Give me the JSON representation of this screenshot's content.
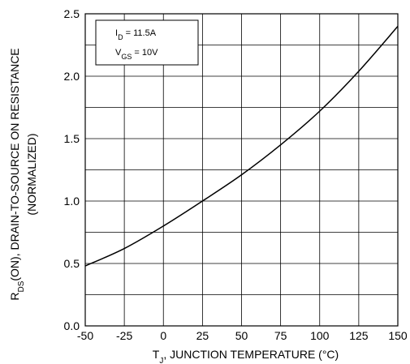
{
  "chart_data": {
    "type": "line",
    "xlabel": {
      "main": "T",
      "sub": "J",
      "rest": ", JUNCTION TEMPERATURE (°C)"
    },
    "ylabel": {
      "main": "R",
      "sub": "DS",
      "rest": "(ON), DRAIN-TO-SOURCE  ON  RESISTANCE",
      "line2": "(NORMALIZED)"
    },
    "xlim": [
      -50,
      150
    ],
    "ylim": [
      0.0,
      2.5
    ],
    "x_ticks": [
      "-50",
      "-25",
      "0",
      "25",
      "50",
      "75",
      "100",
      "125",
      "150"
    ],
    "y_ticks": [
      "0.0",
      "0.5",
      "1.0",
      "1.5",
      "2.0",
      "2.5"
    ],
    "grid": true,
    "legend_position": "top-left",
    "conditions": [
      {
        "main": "I",
        "sub": "D",
        "rest": " = 11.5A"
      },
      {
        "main": "V",
        "sub": "GS",
        "rest": " = 10V"
      }
    ],
    "series": [
      {
        "x": [
          -50,
          -25,
          0,
          25,
          50,
          75,
          100,
          125,
          150
        ],
        "y": [
          0.48,
          0.62,
          0.8,
          1.0,
          1.21,
          1.45,
          1.72,
          2.04,
          2.4
        ]
      }
    ]
  }
}
